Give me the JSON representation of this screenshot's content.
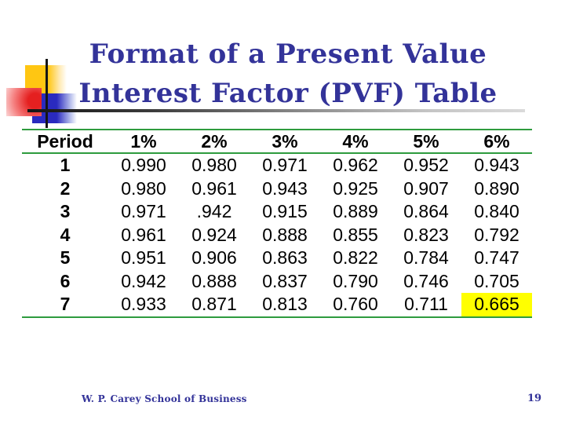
{
  "title": {
    "line1": "Format of a Present Value",
    "line2": "Interest Factor (PVF) Table"
  },
  "table": {
    "headers": [
      "Period",
      "1%",
      "2%",
      "3%",
      "4%",
      "5%",
      "6%"
    ],
    "rows": [
      {
        "period": "1",
        "values": [
          "0.990",
          "0.980",
          "0.971",
          "0.962",
          "0.952",
          "0.943"
        ]
      },
      {
        "period": "2",
        "values": [
          "0.980",
          "0.961",
          "0.943",
          "0.925",
          "0.907",
          "0.890"
        ]
      },
      {
        "period": "3",
        "values": [
          "0.971",
          ".942",
          "0.915",
          "0.889",
          "0.864",
          "0.840"
        ]
      },
      {
        "period": "4",
        "values": [
          "0.961",
          "0.924",
          "0.888",
          "0.855",
          "0.823",
          "0.792"
        ]
      },
      {
        "period": "5",
        "values": [
          "0.951",
          "0.906",
          "0.863",
          "0.822",
          "0.784",
          "0.747"
        ]
      },
      {
        "period": "6",
        "values": [
          "0.942",
          "0.888",
          "0.837",
          "0.790",
          "0.746",
          "0.705"
        ]
      },
      {
        "period": "7",
        "values": [
          "0.933",
          "0.871",
          "0.813",
          "0.760",
          "0.711",
          "0.665"
        ]
      }
    ],
    "highlight_cell": {
      "row_index": 6,
      "col_index": 5,
      "value": "0.665"
    }
  },
  "footer": {
    "organization": "W. P. Carey School of Business",
    "page_number": "19"
  },
  "colors": {
    "title_text": "#333399",
    "table_rule_green": "#2e9b3e",
    "highlight_yellow": "#ffff00",
    "logo_gold": "#ffc612",
    "logo_red": "#e52020",
    "logo_blue": "#2a2abf",
    "footer_text": "#333399"
  }
}
